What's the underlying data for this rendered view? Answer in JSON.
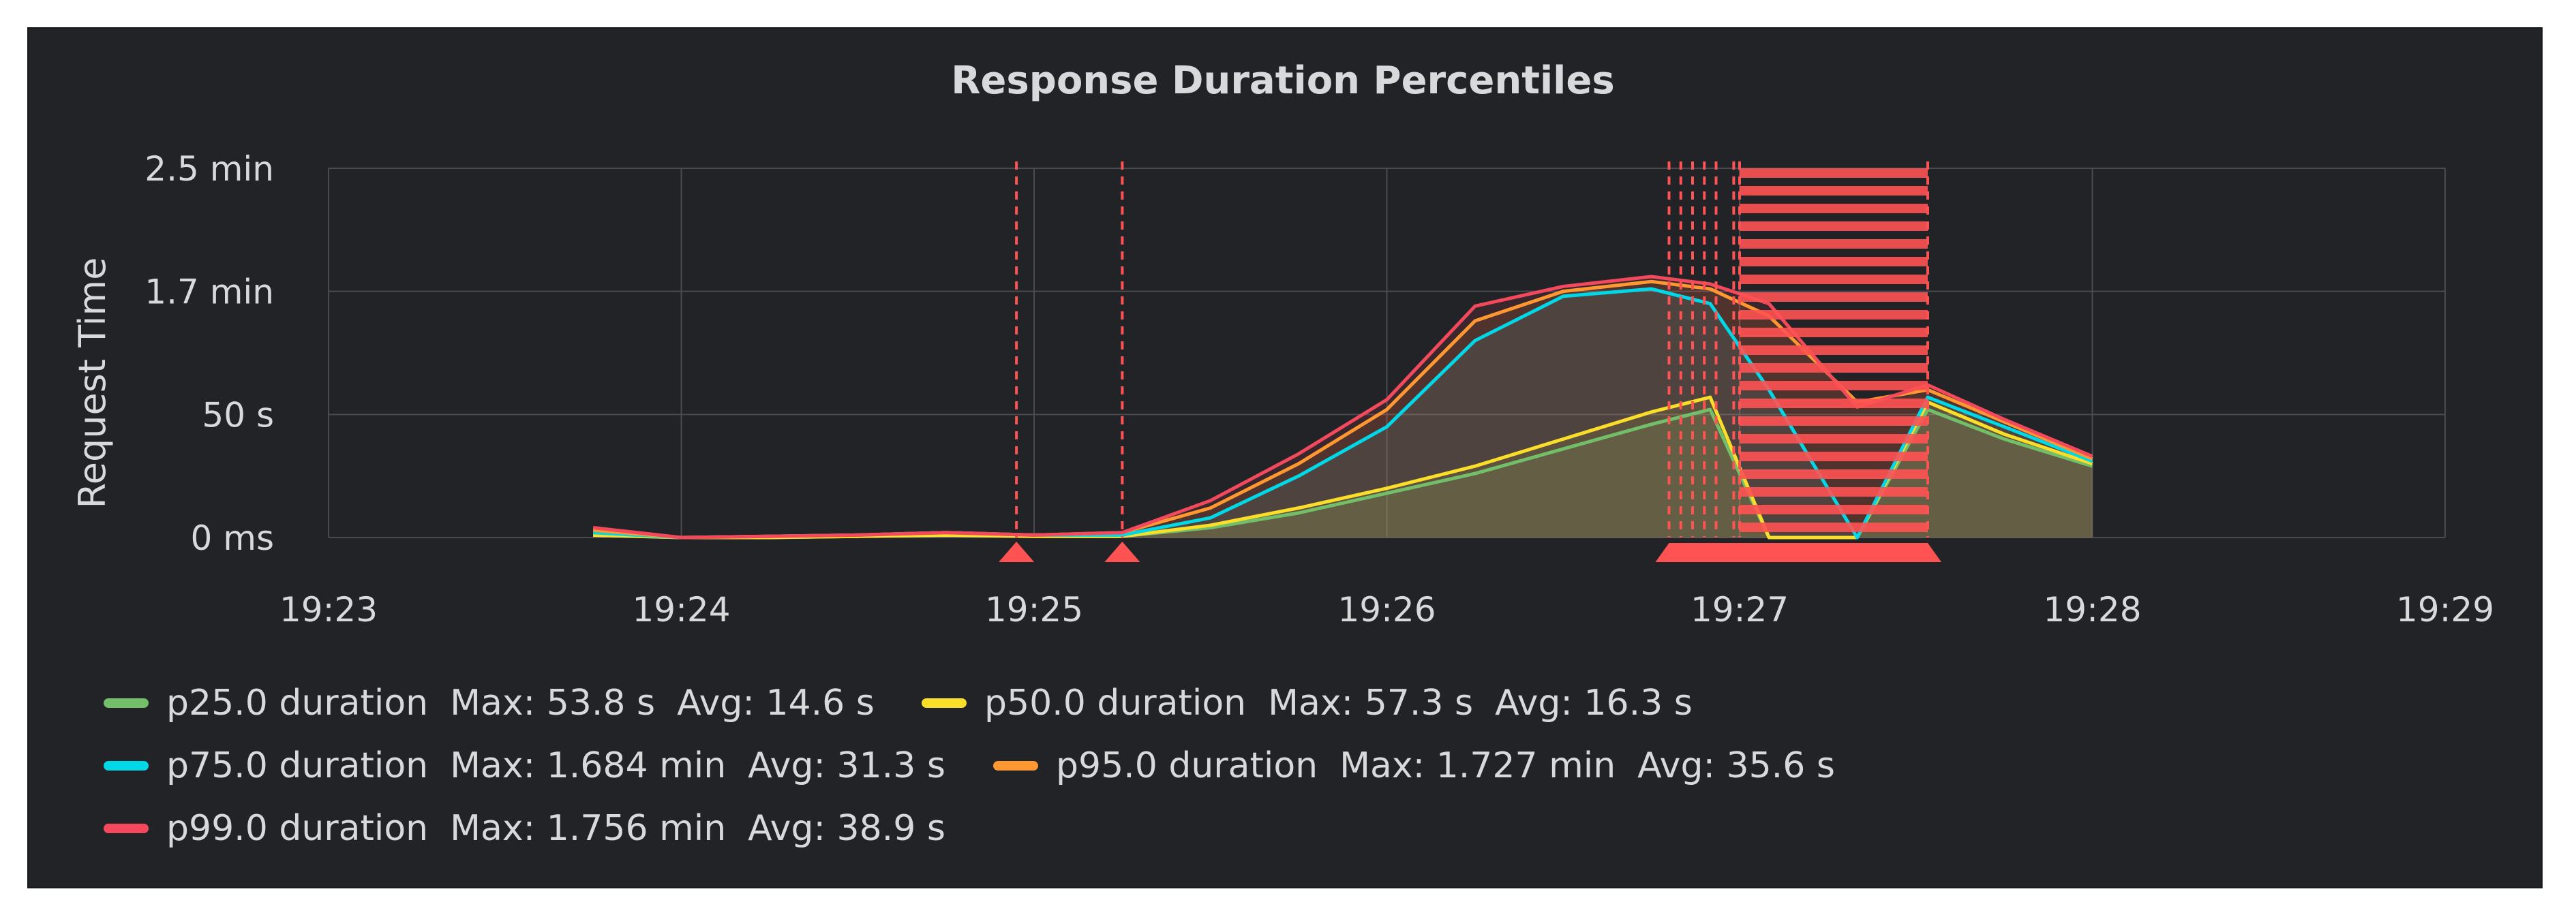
{
  "chart_data": {
    "type": "line",
    "title": "Response Duration Percentiles",
    "ylabel": "Request Time",
    "xlabel": "",
    "x_ticks": [
      "19:23",
      "19:24",
      "19:25",
      "19:26",
      "19:27",
      "19:28",
      "19:29"
    ],
    "y_ticks": [
      {
        "value": 0,
        "label": "0 ms"
      },
      {
        "value": 50,
        "label": "50 s"
      },
      {
        "value": 100,
        "label": "1.7 min"
      },
      {
        "value": 150,
        "label": "2.5 min"
      }
    ],
    "xlim": [
      "19:23",
      "19:29"
    ],
    "ylim_seconds": [
      0,
      150
    ],
    "grid": true,
    "x": [
      "19:23:45",
      "19:24:00",
      "19:24:15",
      "19:24:30",
      "19:24:45",
      "19:25:00",
      "19:25:15",
      "19:25:30",
      "19:25:45",
      "19:26:00",
      "19:26:15",
      "19:26:30",
      "19:26:45",
      "19:26:55",
      "19:27:05",
      "19:27:20",
      "19:27:32",
      "19:27:45",
      "19:28:00"
    ],
    "series": [
      {
        "name": "p25.0 duration",
        "color": "#73bf69",
        "values": [
          1,
          0,
          0,
          0.5,
          1,
          0.5,
          0.5,
          4,
          10,
          18,
          26,
          36,
          46,
          52,
          0,
          0,
          52,
          40,
          29
        ]
      },
      {
        "name": "p50.0 duration",
        "color": "#fade2a",
        "values": [
          1,
          0,
          0,
          0.5,
          1,
          0.5,
          0.5,
          5,
          12,
          20,
          29,
          40,
          51,
          57,
          0,
          0,
          55,
          42,
          30
        ]
      },
      {
        "name": "p75.0 duration",
        "color": "#00d8e8",
        "values": [
          2,
          0,
          0.5,
          1,
          2,
          1,
          1,
          8,
          25,
          45,
          80,
          98,
          101,
          95,
          60,
          0,
          57,
          45,
          31
        ]
      },
      {
        "name": "p95.0 duration",
        "color": "#ff9830",
        "values": [
          3,
          0,
          0.5,
          1,
          2,
          1,
          2,
          12,
          30,
          52,
          88,
          100,
          104,
          101,
          90,
          55,
          60,
          47,
          32
        ]
      },
      {
        "name": "p99.0 duration",
        "color": "#f2495c",
        "values": [
          4,
          0,
          0.5,
          1,
          2,
          1,
          2,
          15,
          34,
          56,
          94,
          102,
          106,
          103,
          95,
          53,
          62,
          48,
          33
        ]
      }
    ],
    "legend": [
      {
        "name": "p25.0 duration",
        "color": "#73bf69",
        "max": "Max: 53.8 s",
        "avg": "Avg: 14.6 s"
      },
      {
        "name": "p50.0 duration",
        "color": "#fade2a",
        "max": "Max: 57.3 s",
        "avg": "Avg: 16.3 s"
      },
      {
        "name": "p75.0 duration",
        "color": "#00d8e8",
        "max": "Max: 1.684 min",
        "avg": "Avg: 31.3 s"
      },
      {
        "name": "p95.0 duration",
        "color": "#ff9830",
        "max": "Max: 1.727 min",
        "avg": "Avg: 35.6 s"
      },
      {
        "name": "p99.0 duration",
        "color": "#f2495c",
        "max": "Max: 1.756 min",
        "avg": "Avg: 38.9 s"
      }
    ],
    "legend_placement": "bottom",
    "annotations": {
      "color": "#ff5252",
      "markers": [
        "19:24:57",
        "19:25:15"
      ],
      "dense_lines": [
        "19:26:48",
        "19:26:50",
        "19:26:52",
        "19:26:54",
        "19:26:56",
        "19:26:59"
      ],
      "region": [
        "19:27:00",
        "19:27:32"
      ]
    }
  }
}
